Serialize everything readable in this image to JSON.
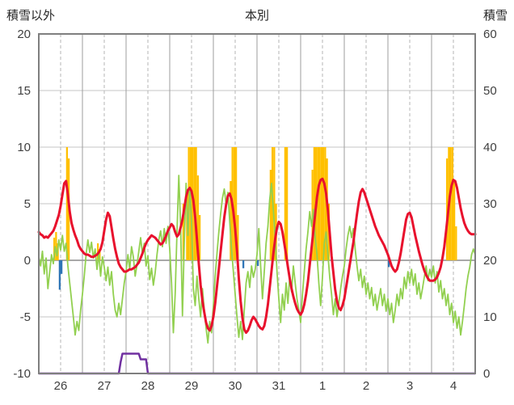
{
  "header": {
    "left_axis_title": "積雪以外",
    "chart_title": "本別",
    "right_axis_title": "積雪"
  },
  "chart_data": {
    "type": "line",
    "title": "本別",
    "left_axis": {
      "label": "積雪以外",
      "min": -10,
      "max": 20,
      "ticks": [
        20,
        15,
        10,
        5,
        0,
        -5,
        -10
      ]
    },
    "right_axis": {
      "label": "積雪",
      "min": 0,
      "max": 60,
      "ticks": [
        60,
        50,
        40,
        30,
        20,
        10,
        0
      ]
    },
    "x_axis": {
      "tick_labels": [
        "26",
        "27",
        "28",
        "29",
        "30",
        "31",
        "1",
        "2",
        "3",
        "4"
      ],
      "days": 10,
      "points_per_day": 24
    },
    "grid": {
      "horizontal_step": 5,
      "day_lines_solid": true,
      "noon_lines_dashed": true
    },
    "colors": {
      "red_line": "#e8112d",
      "green_line": "#92d050",
      "orange_bars": "#ffc000",
      "blue_bars": "#2e75b6",
      "purple_line": "#7030a0",
      "grid_major": "#9d9d9d",
      "grid_minor": "#c6c6c6",
      "grid_dashed": "#b5b5b5",
      "zero_line": "#8c8c8c",
      "border": "#7f7f7f",
      "tick_text": "#404040"
    },
    "series": {
      "red_line": {
        "axis": "left",
        "stroke_width": 3,
        "values": [
          2.5,
          2.3,
          2.2,
          2.0,
          2.1,
          2.0,
          2.2,
          2.4,
          2.6,
          3.0,
          3.5,
          4.0,
          4.8,
          5.8,
          6.8,
          7.0,
          5.8,
          4.3,
          3.3,
          2.7,
          2.2,
          1.8,
          1.3,
          1.0,
          0.8,
          0.6,
          0.5,
          0.5,
          0.4,
          0.3,
          0.3,
          0.4,
          0.5,
          0.7,
          1.0,
          1.6,
          2.6,
          3.6,
          4.2,
          3.9,
          2.9,
          1.9,
          1.0,
          0.3,
          -0.3,
          -0.6,
          -0.8,
          -1.0,
          -1.0,
          -0.9,
          -0.8,
          -0.8,
          -0.7,
          -0.6,
          -0.4,
          -0.2,
          0.2,
          0.6,
          1.1,
          1.5,
          1.8,
          2.0,
          2.2,
          2.1,
          2.0,
          1.8,
          1.6,
          1.4,
          1.5,
          1.8,
          2.2,
          2.6,
          2.9,
          3.2,
          3.0,
          2.5,
          2.1,
          2.3,
          2.9,
          3.6,
          4.6,
          5.6,
          6.2,
          6.4,
          6.1,
          5.3,
          3.8,
          1.8,
          -0.3,
          -2.2,
          -3.6,
          -4.6,
          -5.5,
          -6.0,
          -6.2,
          -5.8,
          -5.0,
          -3.8,
          -2.3,
          -0.8,
          0.8,
          2.3,
          3.8,
          4.9,
          5.7,
          5.9,
          5.4,
          4.3,
          2.8,
          0.8,
          -1.6,
          -3.6,
          -5.1,
          -6.1,
          -6.4,
          -6.2,
          -5.8,
          -5.3,
          -5.0,
          -5.2,
          -5.5,
          -5.8,
          -6.0,
          -6.1,
          -5.8,
          -5.0,
          -3.9,
          -2.4,
          -0.9,
          0.6,
          1.9,
          2.9,
          3.4,
          3.2,
          2.5,
          1.5,
          0.5,
          -0.6,
          -1.6,
          -2.5,
          -3.2,
          -3.8,
          -4.3,
          -4.6,
          -4.8,
          -4.5,
          -3.9,
          -3.0,
          -1.9,
          -0.4,
          1.1,
          2.6,
          4.1,
          5.6,
          6.6,
          7.1,
          7.2,
          6.8,
          5.9,
          4.4,
          2.4,
          0.4,
          -1.1,
          -2.6,
          -3.6,
          -4.2,
          -4.4,
          -4.0,
          -3.4,
          -2.4,
          -1.4,
          -0.4,
          0.6,
          1.6,
          2.9,
          4.1,
          5.2,
          6.0,
          6.3,
          6.0,
          5.5,
          5.0,
          4.5,
          4.0,
          3.5,
          3.0,
          2.6,
          2.2,
          1.9,
          1.6,
          1.3,
          0.9,
          0.5,
          0.0,
          -0.5,
          -0.8,
          -1.0,
          -0.8,
          -0.2,
          0.6,
          1.6,
          2.6,
          3.6,
          4.1,
          4.2,
          3.8,
          3.0,
          2.2,
          1.5,
          0.8,
          0.2,
          -0.4,
          -0.9,
          -1.3,
          -1.6,
          -1.8,
          -1.8,
          -1.8,
          -1.7,
          -1.5,
          -1.1,
          -0.6,
          0.2,
          1.2,
          2.6,
          4.1,
          5.6,
          6.6,
          7.1,
          7.0,
          6.4,
          5.5,
          4.6,
          3.9,
          3.3,
          2.9,
          2.6,
          2.4,
          2.3,
          2.3,
          2.3
        ]
      },
      "green_line": {
        "axis": "left",
        "stroke_width": 1.8,
        "values": [
          0.3,
          -0.5,
          0.8,
          -1.2,
          0.2,
          -2.5,
          -1.0,
          0.5,
          -0.3,
          1.2,
          0.4,
          1.8,
          0.9,
          2.2,
          0.8,
          1.5,
          -0.5,
          -2.0,
          -3.5,
          -5.0,
          -6.6,
          -5.4,
          -6.2,
          -4.4,
          -3.0,
          -1.4,
          0.5,
          1.8,
          0.7,
          1.6,
          0.2,
          1.0,
          -0.8,
          0.6,
          -1.4,
          0.3,
          -0.6,
          -1.8,
          -0.6,
          -2.2,
          -1.0,
          -3.0,
          -4.4,
          -5.0,
          -3.8,
          -4.8,
          -3.4,
          -2.0,
          -1.0,
          0.5,
          -0.8,
          1.2,
          0.3,
          -1.4,
          -0.4,
          0.8,
          2.0,
          0.6,
          1.5,
          -0.5,
          0.4,
          -1.7,
          -0.7,
          -2.2,
          -1.1,
          0.5,
          1.8,
          2.6,
          1.2,
          2.8,
          1.5,
          3.0,
          1.0,
          -2.0,
          -6.4,
          -3.0,
          2.5,
          7.5,
          3.0,
          -4.9,
          1.5,
          6.8,
          2.2,
          6.4,
          3.4,
          -2.5,
          -4.0,
          -1.4,
          -3.4,
          -5.0,
          -2.5,
          -4.4,
          -6.0,
          -7.3,
          -5.4,
          -6.4,
          -4.0,
          -1.4,
          0.6,
          2.5,
          4.1,
          5.5,
          6.3,
          5.0,
          6.0,
          3.4,
          1.0,
          -1.0,
          -3.0,
          -5.0,
          -6.8,
          -5.4,
          -7.0,
          -4.4,
          -2.0,
          -1.0,
          -2.4,
          -0.5,
          -1.5,
          -0.8,
          0.5,
          2.8,
          -0.5,
          -3.4,
          -1.0,
          1.5,
          3.0,
          5.4,
          6.8,
          4.4,
          2.0,
          -1.0,
          -3.4,
          -5.5,
          -3.0,
          -4.4,
          -2.0,
          -3.8,
          -1.4,
          -2.8,
          -0.5,
          -2.0,
          -3.4,
          -4.4,
          -5.5,
          -3.0,
          -1.0,
          1.0,
          2.5,
          4.3,
          3.0,
          4.5,
          2.0,
          0.5,
          -2.0,
          -4.0,
          -1.5,
          1.5,
          2.5,
          0.5,
          -1.5,
          -3.0,
          -4.8,
          -3.4,
          -5.0,
          -3.8,
          -2.5,
          -1.4,
          -0.5,
          1.0,
          2.2,
          3.0,
          2.0,
          2.8,
          1.0,
          -0.5,
          -1.8,
          -0.8,
          -2.4,
          -1.4,
          -3.0,
          -2.0,
          -3.4,
          -2.4,
          -4.0,
          -3.0,
          -4.4,
          -3.4,
          -2.5,
          -4.0,
          -3.0,
          -4.5,
          -3.4,
          -4.8,
          -3.8,
          -5.5,
          -4.4,
          -3.0,
          -4.0,
          -2.5,
          -3.4,
          -1.5,
          -2.5,
          -1.0,
          -2.0,
          -0.8,
          -2.2,
          -1.2,
          -3.0,
          -2.0,
          -3.4,
          -2.5,
          -1.5,
          -0.5,
          -1.8,
          -0.8,
          -1.5,
          -0.5,
          -2.0,
          -1.0,
          -2.8,
          -1.8,
          -3.4,
          -2.5,
          -4.0,
          -3.0,
          -4.8,
          -3.8,
          -5.5,
          -4.5,
          -6.0,
          -5.0,
          -6.6,
          -5.4,
          -4.0,
          -2.5,
          -1.4,
          -0.6,
          0.5,
          1.0,
          0.5
        ]
      },
      "orange_bars": {
        "axis": "left",
        "values_by_hour": {
          "8": 2,
          "9": 2.5,
          "10": 1.5,
          "15": 10,
          "16": 9,
          "32": 1.5,
          "33": 1,
          "79": 5,
          "81": 6,
          "82": 10,
          "83": 10,
          "84": 10,
          "85": 10,
          "86": 10,
          "87": 7.5,
          "88": 4,
          "105": 7,
          "106": 10,
          "107": 10,
          "108": 10,
          "109": 4,
          "127": 8,
          "128": 10,
          "129": 10,
          "130": 5,
          "135": 10,
          "136": 10,
          "150": 8,
          "151": 10,
          "152": 10,
          "153": 10,
          "154": 10,
          "155": 10,
          "156": 10,
          "157": 10,
          "158": 9,
          "159": 5,
          "224": 9,
          "225": 10,
          "226": 10,
          "227": 10,
          "228": 7,
          "229": 3
        }
      },
      "blue_bars": {
        "axis": "left",
        "values_by_hour": {
          "11": -2.6,
          "12": -1.2,
          "112": -0.7,
          "120": -0.5,
          "192": -0.6
        }
      },
      "purple_line": {
        "axis": "right",
        "stroke_width": 2.5,
        "default": 0,
        "values_by_hour": {
          "45": 2,
          "46": 3.5,
          "47": 3.5,
          "48": 3.5,
          "49": 3.5,
          "50": 3.5,
          "51": 3.5,
          "52": 3.5,
          "53": 3.5,
          "54": 3.5,
          "55": 3.5,
          "56": 2.5,
          "57": 2.5,
          "58": 2.5,
          "59": 2.5,
          "60": 0
        }
      }
    }
  }
}
